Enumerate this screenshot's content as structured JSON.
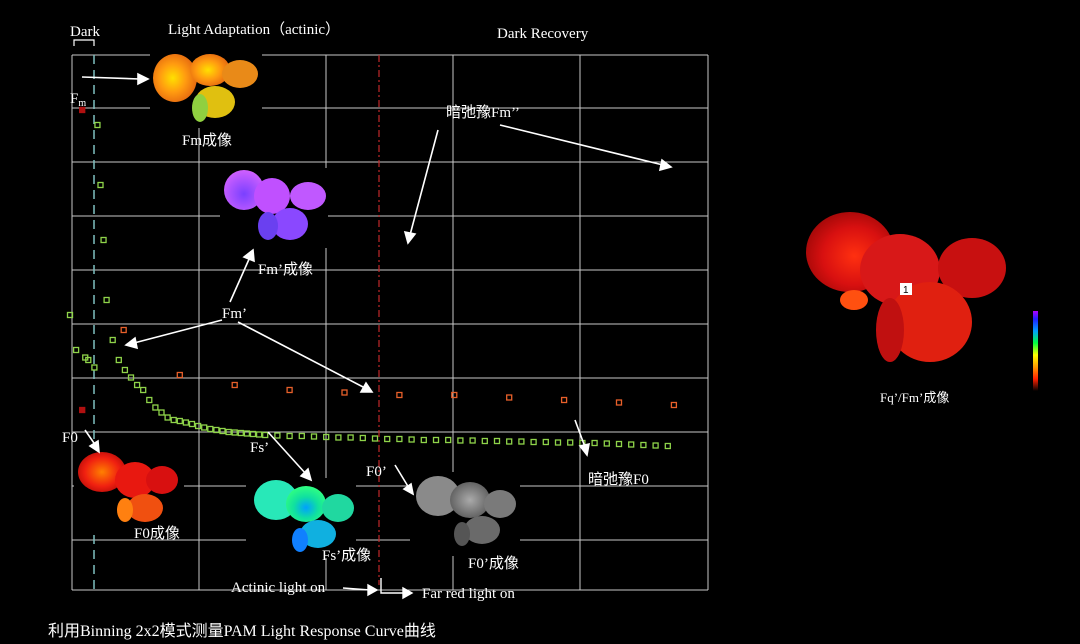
{
  "labels": {
    "dark": "Dark",
    "light_adaptation": "Light Adaptation（actinic）",
    "dark_recovery": "Dark Recovery",
    "fm": "F",
    "fm_sub": "m",
    "fm_image": "Fm成像",
    "fm_prime_image": "Fm’成像",
    "fm_prime": "Fm’",
    "fm_relax": "暗弛豫Fm’’",
    "f0": "F0",
    "f0_image": "F0成像",
    "fs_prime": "Fs’",
    "fs_prime_image": "Fs’成像",
    "f0_prime": "F0’",
    "f0_prime_image": "F0’成像",
    "f0_relax": "暗弛豫F0",
    "actinic_on": "Actinic light on",
    "far_red_on": "Far red light on",
    "ratio_image": "Fq’/Fm’成像",
    "aoi_marker": "1"
  },
  "caption": "利用Binning 2x2模式测量PAM Light Response Curve曲线",
  "colors": {
    "background": "#000000",
    "grid": "#c8c8c8",
    "dark_marker": "#b01010",
    "orange_marker": "#e8602a",
    "green_marker": "#8fd44a",
    "dark_line": "#7fbfbf",
    "event_line": "#c0282a"
  },
  "chart_data": {
    "type": "scatter",
    "title": "",
    "xlabel": "",
    "ylabel": "",
    "grid": true,
    "xlim": [
      0,
      100
    ],
    "ylim": [
      0,
      100
    ],
    "series": [
      {
        "name": "Fm",
        "style": "dark-red",
        "points": [
          [
            2,
            90
          ]
        ]
      },
      {
        "name": "F0",
        "style": "dark-red",
        "points": [
          [
            2,
            30
          ]
        ]
      },
      {
        "name": "Fm’",
        "style": "orange",
        "points": [
          [
            8.8,
            46
          ],
          [
            18,
            37
          ],
          [
            27,
            35
          ],
          [
            36,
            34
          ],
          [
            45,
            33.5
          ],
          [
            54,
            33
          ],
          [
            63,
            33
          ],
          [
            72,
            32.5
          ],
          [
            81,
            32
          ],
          [
            90,
            31.5
          ],
          [
            99,
            31
          ]
        ]
      },
      {
        "name": "Fs’",
        "style": "green",
        "points": [
          [
            0,
            49
          ],
          [
            1,
            42
          ],
          [
            2.5,
            40.5
          ],
          [
            3,
            40
          ],
          [
            4,
            38.5
          ],
          [
            4.5,
            87
          ],
          [
            5,
            75
          ],
          [
            5.5,
            64
          ],
          [
            6,
            52
          ],
          [
            7,
            44
          ],
          [
            8,
            40
          ],
          [
            9,
            38
          ],
          [
            10,
            36.5
          ],
          [
            11,
            35
          ],
          [
            12,
            34
          ],
          [
            13,
            32
          ],
          [
            14,
            30.5
          ],
          [
            15,
            29.5
          ],
          [
            16,
            28.5
          ],
          [
            17,
            28
          ],
          [
            18,
            27.8
          ],
          [
            19,
            27.5
          ],
          [
            20,
            27.2
          ],
          [
            21,
            26.8
          ],
          [
            22,
            26.5
          ],
          [
            23,
            26.2
          ],
          [
            24,
            26
          ],
          [
            25,
            25.8
          ],
          [
            26,
            25.6
          ],
          [
            27,
            25.5
          ],
          [
            28,
            25.4
          ],
          [
            29,
            25.3
          ],
          [
            30,
            25.2
          ],
          [
            31,
            25.1
          ],
          [
            32,
            25
          ],
          [
            34,
            24.9
          ],
          [
            36,
            24.8
          ],
          [
            38,
            24.8
          ],
          [
            40,
            24.7
          ],
          [
            42,
            24.6
          ],
          [
            44,
            24.5
          ],
          [
            46,
            24.5
          ],
          [
            48,
            24.4
          ],
          [
            50,
            24.3
          ],
          [
            52,
            24.2
          ],
          [
            54,
            24.2
          ],
          [
            56,
            24.1
          ],
          [
            58,
            24
          ],
          [
            60,
            24
          ],
          [
            62,
            24
          ],
          [
            64,
            23.9
          ],
          [
            66,
            23.9
          ],
          [
            68,
            23.8
          ],
          [
            70,
            23.8
          ],
          [
            72,
            23.7
          ],
          [
            74,
            23.7
          ],
          [
            76,
            23.6
          ],
          [
            78,
            23.6
          ],
          [
            80,
            23.5
          ],
          [
            82,
            23.5
          ],
          [
            84,
            23.4
          ],
          [
            86,
            23.4
          ],
          [
            88,
            23.3
          ],
          [
            90,
            23.2
          ],
          [
            92,
            23.1
          ],
          [
            94,
            23
          ],
          [
            96,
            22.9
          ],
          [
            98,
            22.8
          ]
        ]
      }
    ]
  }
}
